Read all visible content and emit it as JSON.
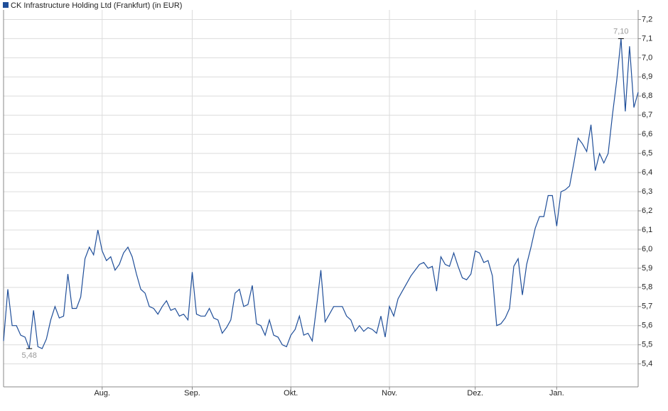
{
  "chart_data": {
    "type": "line",
    "series": [
      {
        "name": "CK Infrastructure Holding Ltd (Frankfurt) (in EUR)",
        "color": "#1f4e99",
        "values": [
          5.52,
          5.79,
          5.6,
          5.6,
          5.55,
          5.54,
          5.48,
          5.68,
          5.49,
          5.48,
          5.53,
          5.63,
          5.7,
          5.64,
          5.65,
          5.87,
          5.69,
          5.69,
          5.75,
          5.95,
          6.01,
          5.97,
          6.1,
          5.99,
          5.94,
          5.96,
          5.89,
          5.92,
          5.98,
          6.01,
          5.96,
          5.87,
          5.79,
          5.77,
          5.7,
          5.69,
          5.66,
          5.7,
          5.73,
          5.68,
          5.69,
          5.65,
          5.66,
          5.63,
          5.88,
          5.66,
          5.65,
          5.65,
          5.69,
          5.64,
          5.63,
          5.56,
          5.59,
          5.63,
          5.77,
          5.79,
          5.7,
          5.71,
          5.81,
          5.61,
          5.6,
          5.55,
          5.63,
          5.55,
          5.54,
          5.5,
          5.49,
          5.55,
          5.58,
          5.65,
          5.55,
          5.56,
          5.52,
          5.7,
          5.89,
          5.62,
          5.66,
          5.7,
          5.7,
          5.7,
          5.65,
          5.63,
          5.57,
          5.6,
          5.57,
          5.59,
          5.58,
          5.56,
          5.65,
          5.54,
          5.7,
          5.65,
          5.74,
          5.78,
          5.82,
          5.86,
          5.89,
          5.92,
          5.93,
          5.9,
          5.91,
          5.78,
          5.96,
          5.92,
          5.91,
          5.98,
          5.91,
          5.85,
          5.84,
          5.87,
          5.99,
          5.98,
          5.93,
          5.94,
          5.86,
          5.6,
          5.61,
          5.64,
          5.69,
          5.91,
          5.95,
          5.76,
          5.92,
          6.01,
          6.11,
          6.17,
          6.17,
          6.28,
          6.28,
          6.12,
          6.3,
          6.31,
          6.33,
          6.45,
          6.58,
          6.55,
          6.51,
          6.65,
          6.41,
          6.5,
          6.45,
          6.5,
          6.7,
          6.88,
          7.1,
          6.72,
          7.06,
          6.74,
          6.82
        ]
      }
    ],
    "categories": [
      null,
      null,
      null,
      null,
      null,
      null,
      null,
      null,
      null,
      null,
      null,
      null,
      null,
      null,
      null,
      null,
      null,
      null,
      null,
      null,
      null,
      null,
      null,
      "Aug.",
      null,
      null,
      null,
      null,
      null,
      null,
      null,
      null,
      null,
      null,
      null,
      null,
      null,
      null,
      null,
      null,
      null,
      null,
      null,
      null,
      "Sep.",
      null,
      null,
      null,
      null,
      null,
      null,
      null,
      null,
      null,
      null,
      null,
      null,
      null,
      null,
      null,
      null,
      null,
      null,
      null,
      null,
      null,
      null,
      "Okt.",
      null,
      null,
      null,
      null,
      null,
      null,
      null,
      null,
      null,
      null,
      null,
      null,
      null,
      null,
      null,
      null,
      null,
      null,
      null,
      null,
      null,
      null,
      "Nov.",
      null,
      null,
      null,
      null,
      null,
      null,
      null,
      null,
      null,
      null,
      null,
      null,
      null,
      null,
      null,
      null,
      null,
      null,
      null,
      "Dez.",
      null,
      null,
      null,
      null,
      null,
      null,
      null,
      null,
      null,
      null,
      null,
      null,
      null,
      null,
      null,
      null,
      null,
      null,
      "Jan.",
      null,
      null,
      null,
      null,
      null,
      null,
      null,
      null,
      null,
      null,
      null,
      null,
      null,
      null,
      null,
      null,
      null,
      null,
      null
    ],
    "ylim": [
      5.28,
      7.25
    ],
    "yticks": [
      {
        "value": 5.4,
        "label": "5,4"
      },
      {
        "value": 5.5,
        "label": "5,5"
      },
      {
        "value": 5.6,
        "label": "5,6"
      },
      {
        "value": 5.7,
        "label": "5,7"
      },
      {
        "value": 5.8,
        "label": "5,8"
      },
      {
        "value": 5.9,
        "label": "5,9"
      },
      {
        "value": 6.0,
        "label": "6,0"
      },
      {
        "value": 6.1,
        "label": "6,1"
      },
      {
        "value": 6.2,
        "label": "6,2"
      },
      {
        "value": 6.3,
        "label": "6,3"
      },
      {
        "value": 6.4,
        "label": "6,4"
      },
      {
        "value": 6.5,
        "label": "6,5"
      },
      {
        "value": 6.6,
        "label": "6,6"
      },
      {
        "value": 6.7,
        "label": "6,7"
      },
      {
        "value": 6.8,
        "label": "6,8"
      },
      {
        "value": 6.9,
        "label": "6,9"
      },
      {
        "value": 7.0,
        "label": "7,0"
      },
      {
        "value": 7.1,
        "label": "7,1"
      },
      {
        "value": 7.2,
        "label": "7,2"
      }
    ],
    "annotations": [
      {
        "value": 5.48,
        "label": "5,48",
        "position": "below"
      },
      {
        "value": 7.1,
        "label": "7,10",
        "position": "above"
      }
    ],
    "grid": true
  }
}
